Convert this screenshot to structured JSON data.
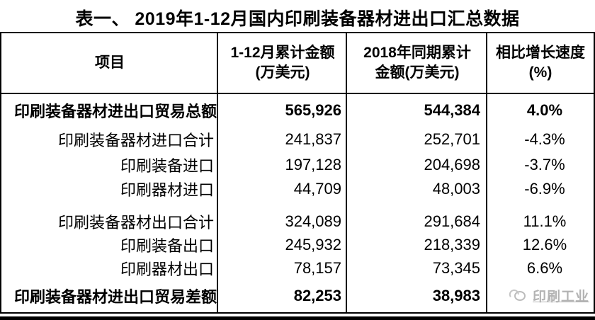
{
  "title": "表一、 2019年1-12月国内印刷装备器材进出口汇总数据",
  "table": {
    "headers": {
      "col1": "项目",
      "col2_line1": "1-12月累计金额",
      "col2_line2": "(万美元)",
      "col3_line1": "2018年同期累计",
      "col3_line2": "金额(万美元)",
      "col4_line1": "相比增长速度",
      "col4_line2": "(%)"
    },
    "rows": [
      {
        "label": "印刷装备器材进出口贸易总额",
        "v2019": "565,926",
        "v2018": "544,384",
        "growth": "4.0%"
      },
      {
        "label": "印刷装备器材进口合计",
        "v2019": "241,837",
        "v2018": "252,701",
        "growth": "-4.3%"
      },
      {
        "label": "印刷装备进口",
        "v2019": "197,128",
        "v2018": "204,698",
        "growth": "-3.7%"
      },
      {
        "label": "印刷器材进口",
        "v2019": "44,709",
        "v2018": "48,003",
        "growth": "-6.9%"
      },
      {
        "label": "印刷装备器材出口合计",
        "v2019": "324,089",
        "v2018": "291,684",
        "growth": "11.1%"
      },
      {
        "label": "印刷装备出口",
        "v2019": "245,932",
        "v2018": "218,339",
        "growth": "12.6%"
      },
      {
        "label": "印刷器材出口",
        "v2019": "78,157",
        "v2018": "73,345",
        "growth": "6.6%"
      },
      {
        "label": "印刷装备器材进出口贸易差额",
        "v2019": "82,253",
        "v2018": "38,983",
        "growth": ""
      }
    ],
    "watermark": "印刷工业"
  },
  "colors": {
    "text": "#000000",
    "border": "#000000",
    "background": "#ffffff",
    "watermark": "#b3b3b3"
  }
}
